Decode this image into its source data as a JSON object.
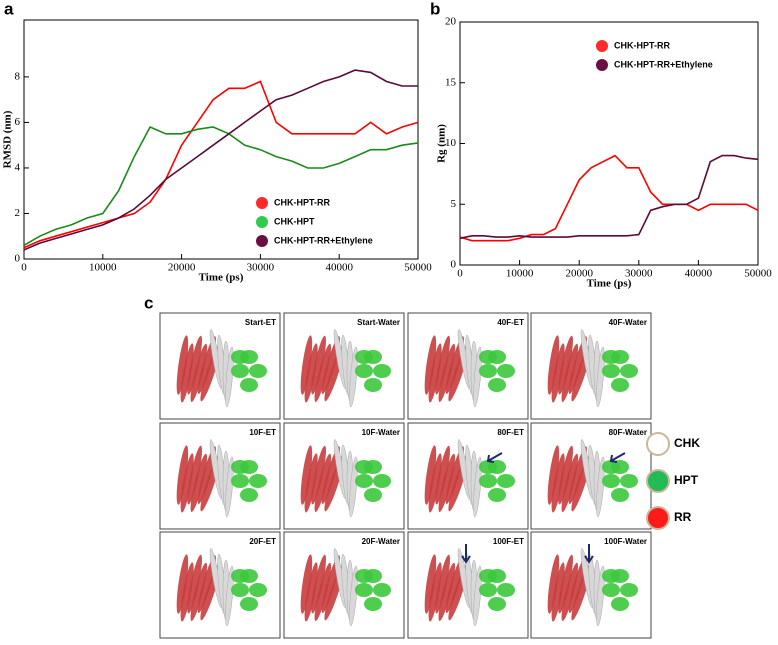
{
  "chart_data": [
    {
      "type": "line",
      "label": "a",
      "xlabel": "Time (ps)",
      "ylabel": "RMSD (nm)",
      "x": [
        0,
        2000,
        4000,
        6000,
        8000,
        10000,
        12000,
        14000,
        16000,
        18000,
        20000,
        22000,
        24000,
        26000,
        28000,
        30000,
        32000,
        34000,
        36000,
        38000,
        40000,
        42000,
        44000,
        46000,
        48000,
        50000
      ],
      "xlim": [
        0,
        50000
      ],
      "xticks": [
        0,
        10000,
        20000,
        30000,
        40000,
        50000
      ],
      "ylim": [
        0,
        10.5
      ],
      "yticks": [
        0,
        2,
        4,
        6,
        8
      ],
      "legend": "lower right",
      "series": [
        {
          "name": "CHK-HPT-RR",
          "color": "#ff0000",
          "marker_color": "#ff2a2a",
          "values": [
            0.5,
            0.8,
            1.0,
            1.2,
            1.4,
            1.6,
            1.8,
            2.0,
            2.5,
            3.5,
            5.0,
            6.0,
            7.0,
            7.5,
            7.5,
            7.8,
            6.0,
            5.5,
            5.5,
            5.5,
            5.5,
            5.5,
            6.0,
            5.5,
            5.8,
            6.0
          ]
        },
        {
          "name": "CHK-HPT",
          "color": "#1a8a1a",
          "marker_color": "#2ecc4a",
          "values": [
            0.6,
            1.0,
            1.3,
            1.5,
            1.8,
            2.0,
            3.0,
            4.5,
            5.8,
            5.5,
            5.5,
            5.7,
            5.8,
            5.5,
            5.0,
            4.8,
            4.5,
            4.3,
            4.0,
            4.0,
            4.2,
            4.5,
            4.8,
            4.8,
            5.0,
            5.1
          ]
        },
        {
          "name": "CHK-HPT-RR+Ethylene",
          "color": "#5a0a3a",
          "marker_color": "#6a1040",
          "values": [
            0.4,
            0.7,
            0.9,
            1.1,
            1.3,
            1.5,
            1.8,
            2.2,
            2.8,
            3.5,
            4.0,
            4.5,
            5.0,
            5.5,
            6.0,
            6.5,
            7.0,
            7.2,
            7.5,
            7.8,
            8.0,
            8.3,
            8.2,
            7.8,
            7.6,
            7.6
          ]
        }
      ]
    },
    {
      "type": "line",
      "label": "b",
      "xlabel": "Time (ps)",
      "ylabel": "Rg (nm)",
      "x": [
        0,
        2000,
        4000,
        6000,
        8000,
        10000,
        12000,
        14000,
        16000,
        18000,
        20000,
        22000,
        24000,
        26000,
        28000,
        30000,
        32000,
        34000,
        36000,
        38000,
        40000,
        42000,
        44000,
        46000,
        48000,
        50000
      ],
      "xlim": [
        0,
        50000
      ],
      "xticks": [
        0,
        10000,
        20000,
        30000,
        40000,
        50000
      ],
      "ylim": [
        0,
        20
      ],
      "yticks": [
        0,
        5,
        10,
        15,
        20
      ],
      "legend": "upper right",
      "series": [
        {
          "name": "CHK-HPT-RR",
          "color": "#ff0000",
          "marker_color": "#ff2a2a",
          "values": [
            2.3,
            2.0,
            2.0,
            2.0,
            2.0,
            2.2,
            2.5,
            2.5,
            3.0,
            5.0,
            7.0,
            8.0,
            8.5,
            9.0,
            8.0,
            8.0,
            6.0,
            5.0,
            5.0,
            5.0,
            4.5,
            5.0,
            5.0,
            5.0,
            5.0,
            4.5
          ]
        },
        {
          "name": "CHK-HPT-RR+Ethylene",
          "color": "#5a0a3a",
          "marker_color": "#6a1040",
          "values": [
            2.2,
            2.4,
            2.4,
            2.3,
            2.3,
            2.4,
            2.3,
            2.3,
            2.3,
            2.3,
            2.4,
            2.4,
            2.4,
            2.4,
            2.4,
            2.5,
            4.5,
            4.8,
            5.0,
            5.0,
            5.5,
            8.5,
            9.0,
            9.0,
            8.8,
            8.7
          ]
        }
      ]
    }
  ],
  "structures": {
    "label": "c",
    "panels": [
      "Start-ET",
      "Start-Water",
      "40F-ET",
      "40F-Water",
      "10F-ET",
      "10F-Water",
      "80F-ET",
      "80F-Water",
      "20F-ET",
      "20F-Water",
      "100F-ET",
      "100F-Water"
    ],
    "legend": [
      {
        "label": "CHK",
        "color": "#ffffff"
      },
      {
        "label": "HPT",
        "color": "#22bb55"
      },
      {
        "label": "RR",
        "color": "#ff1a1a"
      }
    ]
  }
}
